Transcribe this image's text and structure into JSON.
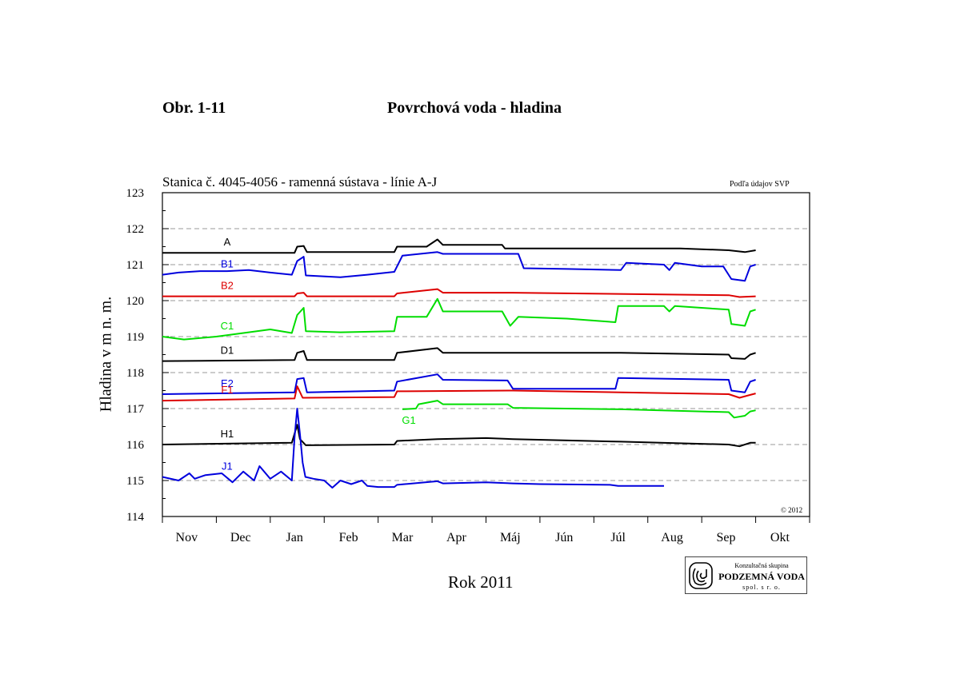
{
  "header": {
    "figure_label": "Obr. 1-11",
    "title": "Povrchová voda - hladina"
  },
  "chart_data": {
    "type": "line",
    "title": "Stanica č. 4045-4056 - ramenná sústava  - línie A-J",
    "source_note": "Podľa údajov SVP",
    "copyright": "© 2012",
    "xlabel": "Rok 2011",
    "ylabel": "Hladina v m n. m.",
    "ylim": [
      114,
      123
    ],
    "yticks": [
      114,
      115,
      116,
      117,
      118,
      119,
      120,
      121,
      122,
      123
    ],
    "x_unit": "month",
    "x_ticks": [
      "Nov",
      "Dec",
      "Jan",
      "Feb",
      "Mar",
      "Apr",
      "Máj",
      "Jún",
      "Júl",
      "Aug",
      "Sep",
      "Okt"
    ],
    "xlim": [
      0,
      12
    ],
    "grid": "dashed horizontal at whole meters",
    "series": [
      {
        "name": "A",
        "color": "#000000",
        "points": [
          [
            0,
            121.33
          ],
          [
            2.45,
            121.33
          ],
          [
            2.5,
            121.5
          ],
          [
            2.62,
            121.52
          ],
          [
            2.68,
            121.35
          ],
          [
            4.3,
            121.35
          ],
          [
            4.35,
            121.5
          ],
          [
            4.9,
            121.5
          ],
          [
            5.1,
            121.7
          ],
          [
            5.2,
            121.55
          ],
          [
            6.3,
            121.55
          ],
          [
            6.35,
            121.45
          ],
          [
            8.5,
            121.45
          ],
          [
            9.6,
            121.45
          ],
          [
            10.5,
            121.4
          ],
          [
            10.8,
            121.35
          ],
          [
            11.0,
            121.4
          ]
        ]
      },
      {
        "name": "B1",
        "color": "#0000dd",
        "points": [
          [
            0,
            120.72
          ],
          [
            0.3,
            120.78
          ],
          [
            0.7,
            120.82
          ],
          [
            1.2,
            120.82
          ],
          [
            1.6,
            120.85
          ],
          [
            2.0,
            120.78
          ],
          [
            2.4,
            120.72
          ],
          [
            2.5,
            121.1
          ],
          [
            2.62,
            121.22
          ],
          [
            2.66,
            120.7
          ],
          [
            3.3,
            120.65
          ],
          [
            3.8,
            120.72
          ],
          [
            4.3,
            120.8
          ],
          [
            4.45,
            121.25
          ],
          [
            5.1,
            121.35
          ],
          [
            5.2,
            121.3
          ],
          [
            6.0,
            121.3
          ],
          [
            6.6,
            121.3
          ],
          [
            6.7,
            120.9
          ],
          [
            7.5,
            120.88
          ],
          [
            8.5,
            120.85
          ],
          [
            8.6,
            121.05
          ],
          [
            9.3,
            121.0
          ],
          [
            9.4,
            120.85
          ],
          [
            9.5,
            121.05
          ],
          [
            10.0,
            120.95
          ],
          [
            10.4,
            120.95
          ],
          [
            10.55,
            120.6
          ],
          [
            10.8,
            120.55
          ],
          [
            10.9,
            120.95
          ],
          [
            11.0,
            121.0
          ]
        ]
      },
      {
        "name": "B2",
        "color": "#dd0000",
        "points": [
          [
            0,
            120.12
          ],
          [
            2.45,
            120.12
          ],
          [
            2.5,
            120.2
          ],
          [
            2.62,
            120.22
          ],
          [
            2.68,
            120.12
          ],
          [
            4.3,
            120.12
          ],
          [
            4.35,
            120.2
          ],
          [
            5.1,
            120.32
          ],
          [
            5.2,
            120.22
          ],
          [
            6.5,
            120.22
          ],
          [
            10.5,
            120.15
          ],
          [
            10.7,
            120.1
          ],
          [
            11.0,
            120.12
          ]
        ]
      },
      {
        "name": "C1",
        "color": "#00dd00",
        "points": [
          [
            0,
            119.0
          ],
          [
            0.4,
            118.92
          ],
          [
            1.0,
            119.0
          ],
          [
            1.6,
            119.12
          ],
          [
            2.0,
            119.2
          ],
          [
            2.4,
            119.1
          ],
          [
            2.5,
            119.6
          ],
          [
            2.62,
            119.8
          ],
          [
            2.66,
            119.15
          ],
          [
            3.3,
            119.12
          ],
          [
            4.3,
            119.15
          ],
          [
            4.35,
            119.55
          ],
          [
            4.9,
            119.55
          ],
          [
            5.1,
            120.05
          ],
          [
            5.2,
            119.7
          ],
          [
            6.3,
            119.7
          ],
          [
            6.45,
            119.3
          ],
          [
            6.6,
            119.55
          ],
          [
            7.5,
            119.5
          ],
          [
            8.4,
            119.4
          ],
          [
            8.45,
            119.85
          ],
          [
            9.3,
            119.85
          ],
          [
            9.4,
            119.7
          ],
          [
            9.5,
            119.85
          ],
          [
            10.5,
            119.75
          ],
          [
            10.55,
            119.35
          ],
          [
            10.8,
            119.3
          ],
          [
            10.9,
            119.7
          ],
          [
            11.0,
            119.75
          ]
        ]
      },
      {
        "name": "D1",
        "color": "#000000",
        "points": [
          [
            0,
            118.32
          ],
          [
            2.45,
            118.35
          ],
          [
            2.5,
            118.55
          ],
          [
            2.62,
            118.6
          ],
          [
            2.68,
            118.35
          ],
          [
            4.3,
            118.35
          ],
          [
            4.35,
            118.55
          ],
          [
            5.1,
            118.68
          ],
          [
            5.2,
            118.55
          ],
          [
            6.5,
            118.55
          ],
          [
            8.5,
            118.55
          ],
          [
            10.5,
            118.5
          ],
          [
            10.55,
            118.4
          ],
          [
            10.8,
            118.38
          ],
          [
            10.9,
            118.5
          ],
          [
            11.0,
            118.55
          ]
        ]
      },
      {
        "name": "E2",
        "color": "#0000dd",
        "points": [
          [
            0,
            117.4
          ],
          [
            2.45,
            117.45
          ],
          [
            2.5,
            117.82
          ],
          [
            2.62,
            117.85
          ],
          [
            2.68,
            117.45
          ],
          [
            4.3,
            117.5
          ],
          [
            4.35,
            117.75
          ],
          [
            5.1,
            117.95
          ],
          [
            5.2,
            117.8
          ],
          [
            6.4,
            117.78
          ],
          [
            6.5,
            117.55
          ],
          [
            8.4,
            117.55
          ],
          [
            8.45,
            117.85
          ],
          [
            10.5,
            117.8
          ],
          [
            10.55,
            117.5
          ],
          [
            10.8,
            117.45
          ],
          [
            10.9,
            117.75
          ],
          [
            11.0,
            117.8
          ]
        ]
      },
      {
        "name": "F1",
        "color": "#dd0000",
        "points": [
          [
            0,
            117.22
          ],
          [
            2.45,
            117.28
          ],
          [
            2.5,
            117.62
          ],
          [
            2.6,
            117.3
          ],
          [
            4.3,
            117.32
          ],
          [
            4.35,
            117.48
          ],
          [
            6.5,
            117.5
          ],
          [
            8.5,
            117.45
          ],
          [
            10.5,
            117.4
          ],
          [
            10.7,
            117.3
          ],
          [
            10.9,
            117.38
          ],
          [
            11.0,
            117.42
          ]
        ]
      },
      {
        "name": "G1",
        "color": "#00dd00",
        "points": [
          [
            4.45,
            116.98
          ],
          [
            4.7,
            117.0
          ],
          [
            4.75,
            117.12
          ],
          [
            5.1,
            117.22
          ],
          [
            5.2,
            117.12
          ],
          [
            6.4,
            117.12
          ],
          [
            6.5,
            117.02
          ],
          [
            8.5,
            116.98
          ],
          [
            10.5,
            116.9
          ],
          [
            10.6,
            116.75
          ],
          [
            10.8,
            116.8
          ],
          [
            10.9,
            116.92
          ],
          [
            11.0,
            116.95
          ]
        ]
      },
      {
        "name": "H1",
        "color": "#000000",
        "points": [
          [
            0,
            116.0
          ],
          [
            2.4,
            116.05
          ],
          [
            2.5,
            116.55
          ],
          [
            2.55,
            116.15
          ],
          [
            2.66,
            115.98
          ],
          [
            4.3,
            116.0
          ],
          [
            4.35,
            116.1
          ],
          [
            5.1,
            116.15
          ],
          [
            6.0,
            116.18
          ],
          [
            6.5,
            116.15
          ],
          [
            8.5,
            116.08
          ],
          [
            10.5,
            116.0
          ],
          [
            10.7,
            115.95
          ],
          [
            10.9,
            116.05
          ],
          [
            11.0,
            116.05
          ]
        ]
      },
      {
        "name": "J1",
        "color": "#0000dd",
        "points": [
          [
            0,
            115.1
          ],
          [
            0.3,
            115.0
          ],
          [
            0.5,
            115.2
          ],
          [
            0.6,
            115.05
          ],
          [
            0.8,
            115.15
          ],
          [
            1.1,
            115.2
          ],
          [
            1.3,
            114.95
          ],
          [
            1.5,
            115.25
          ],
          [
            1.7,
            115.0
          ],
          [
            1.8,
            115.4
          ],
          [
            2.0,
            115.05
          ],
          [
            2.2,
            115.25
          ],
          [
            2.4,
            115.0
          ],
          [
            2.45,
            116.2
          ],
          [
            2.5,
            117.0
          ],
          [
            2.55,
            116.3
          ],
          [
            2.6,
            115.5
          ],
          [
            2.65,
            115.1
          ],
          [
            2.8,
            115.05
          ],
          [
            3.0,
            115.0
          ],
          [
            3.15,
            114.8
          ],
          [
            3.3,
            115.0
          ],
          [
            3.5,
            114.9
          ],
          [
            3.7,
            115.0
          ],
          [
            3.8,
            114.85
          ],
          [
            4.0,
            114.82
          ],
          [
            4.3,
            114.82
          ],
          [
            4.35,
            114.88
          ],
          [
            5.1,
            114.98
          ],
          [
            5.2,
            114.92
          ],
          [
            6.0,
            114.95
          ],
          [
            6.5,
            114.92
          ],
          [
            7.0,
            114.9
          ],
          [
            8.3,
            114.88
          ],
          [
            8.45,
            114.85
          ],
          [
            9.3,
            114.85
          ]
        ]
      }
    ]
  },
  "logo": {
    "top_text": "Konzultačná skupina",
    "name": "PODZEMNÁ VODA",
    "bottom_text": "spol. s r. o."
  }
}
